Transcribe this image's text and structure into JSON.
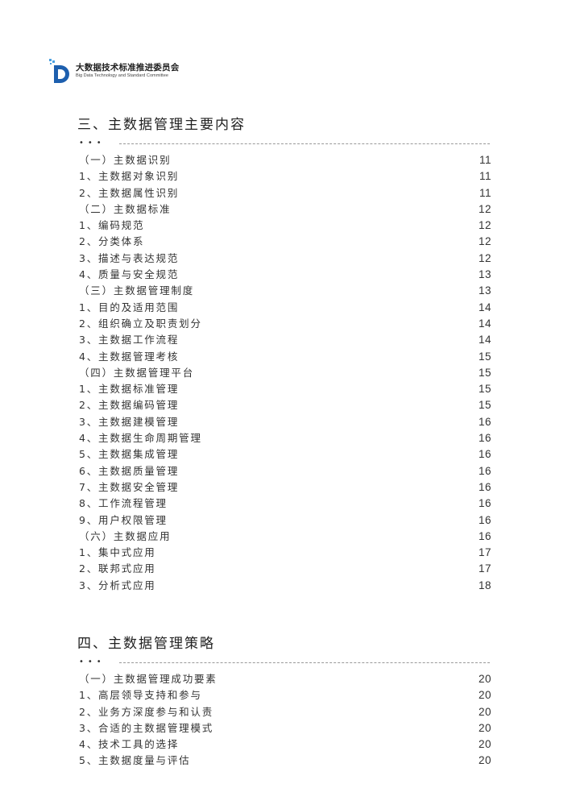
{
  "logo": {
    "name_cn": "大数据技术标准推进委员会",
    "name_en": "Big Data Technology and Standard Committee",
    "color": "#1d5fae"
  },
  "sections": [
    {
      "title": "三、主数据管理主要内容",
      "items": [
        {
          "label": "（一）主数据识别",
          "page": "11"
        },
        {
          "label": "1、主数据对象识别",
          "page": "11"
        },
        {
          "label": "2、主数据属性识别",
          "page": "11"
        },
        {
          "label": "（二）主数据标准",
          "page": "12"
        },
        {
          "label": "1、编码规范",
          "page": "12"
        },
        {
          "label": "2、分类体系",
          "page": "12"
        },
        {
          "label": "3、描述与表达规范",
          "page": "12"
        },
        {
          "label": "4、质量与安全规范",
          "page": "13"
        },
        {
          "label": "（三）主数据管理制度",
          "page": "13"
        },
        {
          "label": "1、目的及适用范围",
          "page": "14"
        },
        {
          "label": "2、组织确立及职责划分",
          "page": "14"
        },
        {
          "label": "3、主数据工作流程",
          "page": "14"
        },
        {
          "label": "4、主数据管理考核",
          "page": "15"
        },
        {
          "label": "（四）主数据管理平台",
          "page": "15"
        },
        {
          "label": "1、主数据标准管理",
          "page": "15"
        },
        {
          "label": "2、主数据编码管理",
          "page": "15"
        },
        {
          "label": "3、主数据建模管理",
          "page": "16"
        },
        {
          "label": "4、主数据生命周期管理",
          "page": "16"
        },
        {
          "label": "5、主数据集成管理",
          "page": "16"
        },
        {
          "label": "6、主数据质量管理",
          "page": "16"
        },
        {
          "label": "7、主数据安全管理",
          "page": "16"
        },
        {
          "label": "8、工作流程管理",
          "page": "16"
        },
        {
          "label": "9、用户权限管理",
          "page": "16"
        },
        {
          "label": "（六）主数据应用",
          "page": "16"
        },
        {
          "label": "1、集中式应用",
          "page": "17"
        },
        {
          "label": "2、联邦式应用",
          "page": "17"
        },
        {
          "label": "3、分析式应用",
          "page": "18"
        }
      ]
    },
    {
      "title": "四、主数据管理策略",
      "items": [
        {
          "label": "（一）主数据管理成功要素",
          "page": "20"
        },
        {
          "label": "1、高层领导支持和参与",
          "page": "20"
        },
        {
          "label": "2、业务方深度参与和认责",
          "page": "20"
        },
        {
          "label": "3、合适的主数据管理模式",
          "page": "20"
        },
        {
          "label": "4、技术工具的选择",
          "page": "20"
        },
        {
          "label": "5、主数据度量与评估",
          "page": "20"
        }
      ]
    }
  ]
}
